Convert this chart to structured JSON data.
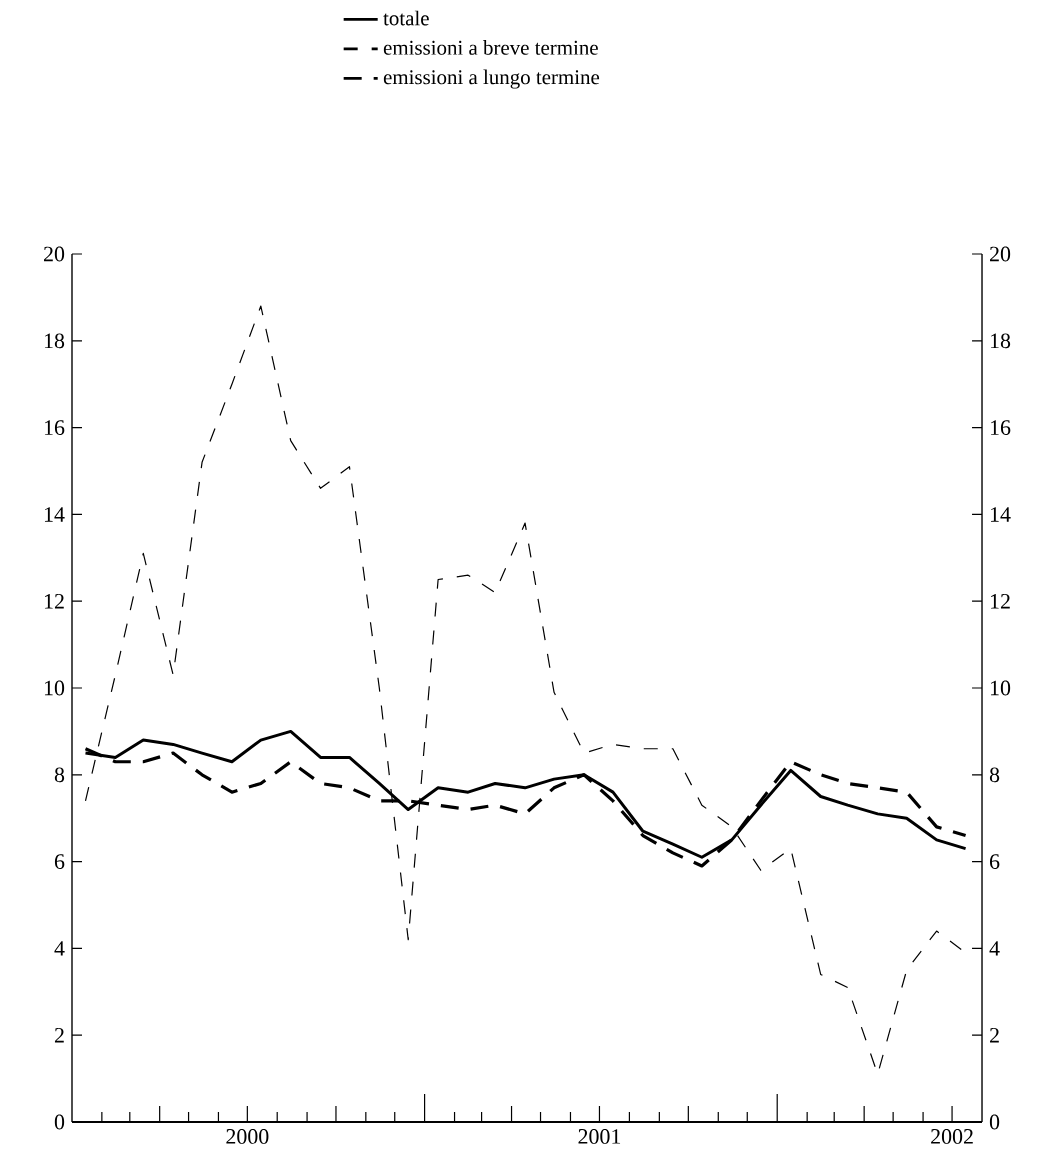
{
  "chart_data": {
    "type": "line",
    "x": [
      "2000-01-15",
      "2000-02-15",
      "2000-03-15",
      "2000-04-15",
      "2000-05-15",
      "2000-06-15",
      "2000-07-15",
      "2000-08-15",
      "2000-09-15",
      "2000-10-15",
      "2000-11-15",
      "2000-12-15",
      "2001-01-15",
      "2001-02-15",
      "2001-03-15",
      "2001-04-15",
      "2001-05-15",
      "2001-06-15",
      "2001-07-15",
      "2001-08-15",
      "2001-09-15",
      "2001-10-15",
      "2001-11-15",
      "2001-12-15",
      "2002-01-15",
      "2002-02-15",
      "2002-03-15",
      "2002-04-15",
      "2002-05-15",
      "2002-06-15",
      "2002-07-15"
    ],
    "series": [
      {
        "name": "totale",
        "color": "#000000",
        "line_style": "solid",
        "values": [
          8.5,
          8.4,
          8.8,
          8.7,
          8.5,
          8.3,
          8.8,
          9.0,
          8.4,
          8.4,
          7.8,
          7.2,
          7.7,
          7.6,
          7.8,
          7.7,
          7.9,
          8.0,
          7.6,
          6.7,
          6.4,
          6.1,
          6.5,
          7.3,
          8.1,
          7.5,
          7.3,
          7.1,
          7.0,
          6.5,
          6.3
        ]
      },
      {
        "name": "emissioni a breve termine",
        "color": "#000000",
        "line_style": "dashed",
        "values": [
          7.4,
          10.3,
          13.1,
          10.3,
          15.2,
          17.0,
          18.8,
          15.7,
          14.6,
          15.1,
          10.0,
          4.2,
          12.5,
          12.6,
          12.2,
          13.8,
          9.9,
          8.5,
          8.7,
          8.6,
          8.6,
          7.3,
          6.8,
          5.8,
          6.3,
          3.4,
          3.1,
          1.1,
          3.5,
          4.4,
          3.9
        ]
      },
      {
        "name": "emissioni a lungo termine",
        "color": "#000000",
        "line_style": "dashed",
        "values": [
          8.6,
          8.3,
          8.3,
          8.5,
          8.0,
          7.6,
          7.8,
          8.3,
          7.8,
          7.7,
          7.4,
          7.4,
          7.3,
          7.2,
          7.3,
          7.1,
          7.7,
          8.0,
          7.4,
          6.6,
          6.2,
          5.9,
          6.5,
          7.4,
          8.3,
          8.0,
          7.8,
          7.7,
          7.6,
          6.8,
          6.6
        ]
      }
    ],
    "xlim": [
      "2000-01-01",
      "2002-08-01"
    ],
    "xticks": [
      {
        "value": "2000-07-01",
        "label": "2000"
      },
      {
        "value": "2001-07-01",
        "label": "2001"
      },
      {
        "value": "2002-07-01",
        "label": "2002"
      },
      {
        "value": "2000-02-01",
        "label": null
      },
      {
        "value": "2000-03-01",
        "label": null
      },
      {
        "value": "2000-04-01",
        "label": null
      },
      {
        "value": "2000-05-01",
        "label": null
      },
      {
        "value": "2000-06-01",
        "label": null
      },
      {
        "value": "2000-07-01",
        "label": null
      },
      {
        "value": "2000-08-01",
        "label": null
      },
      {
        "value": "2000-09-01",
        "label": null
      },
      {
        "value": "2000-10-01",
        "label": null
      },
      {
        "value": "2000-11-01",
        "label": null
      },
      {
        "value": "2000-12-01",
        "label": null
      },
      {
        "value": "2001-01-01",
        "label": null
      },
      {
        "value": "2001-02-01",
        "label": null
      },
      {
        "value": "2001-03-01",
        "label": null
      },
      {
        "value": "2001-04-01",
        "label": null
      },
      {
        "value": "2001-05-01",
        "label": null
      },
      {
        "value": "2001-06-01",
        "label": null
      },
      {
        "value": "2001-07-01",
        "label": null
      },
      {
        "value": "2001-08-01",
        "label": null
      },
      {
        "value": "2001-09-01",
        "label": null
      },
      {
        "value": "2001-10-01",
        "label": null
      },
      {
        "value": "2001-11-01",
        "label": null
      },
      {
        "value": "2001-12-01",
        "label": null
      },
      {
        "value": "2002-01-01",
        "label": null
      },
      {
        "value": "2002-02-01",
        "label": null
      },
      {
        "value": "2002-03-01",
        "label": null
      },
      {
        "value": "2002-04-01",
        "label": null
      },
      {
        "value": "2002-05-01",
        "label": null
      },
      {
        "value": "2002-06-01",
        "label": null
      },
      {
        "value": "2002-07-01",
        "label": null
      }
    ],
    "ylim": [
      0,
      20
    ],
    "yticks": [
      0,
      2,
      4,
      6,
      8,
      10,
      12,
      14,
      16,
      18,
      20
    ],
    "y2lim": [
      0,
      20
    ],
    "y2ticks": [
      0,
      2,
      4,
      6,
      8,
      10,
      12,
      14,
      16,
      18,
      20
    ],
    "grid": false,
    "legend": "top",
    "marker": "none"
  }
}
